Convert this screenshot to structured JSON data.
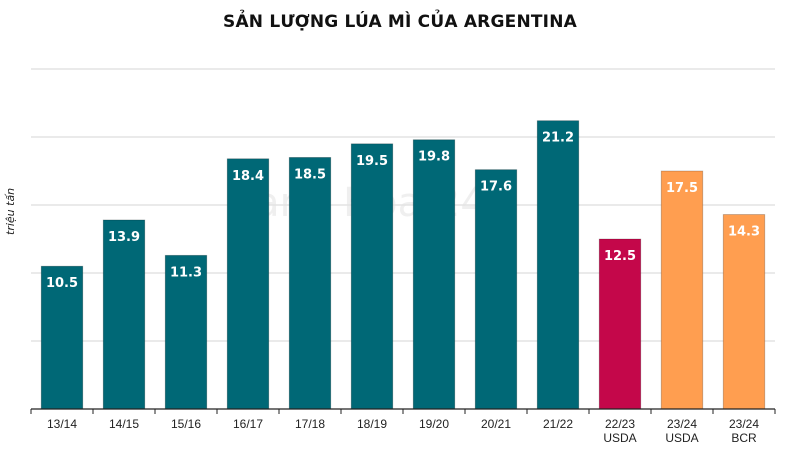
{
  "chart_data": {
    "type": "bar",
    "title": "SẢN LƯỢNG LÚA MÌ CỦA ARGENTINA",
    "xlabel": "",
    "ylabel": "triệu tấn",
    "ylim": [
      0,
      25
    ],
    "grid": true,
    "gridline_values": [
      5,
      10,
      15,
      20,
      25
    ],
    "categories": [
      [
        "13/14"
      ],
      [
        "14/15"
      ],
      [
        "15/16"
      ],
      [
        "16/17"
      ],
      [
        "17/18"
      ],
      [
        "18/19"
      ],
      [
        "19/20"
      ],
      [
        "20/21"
      ],
      [
        "21/22"
      ],
      [
        "22/23",
        "USDA"
      ],
      [
        "23/24",
        "USDA"
      ],
      [
        "23/24",
        "BCR"
      ]
    ],
    "values": [
      10.5,
      13.9,
      11.3,
      18.4,
      18.5,
      19.5,
      19.8,
      17.6,
      21.2,
      12.5,
      17.5,
      14.3
    ],
    "data_labels": [
      "10.5",
      "13.9",
      "11.3",
      "18.4",
      "18.5",
      "19.5",
      "19.8",
      "17.6",
      "21.2",
      "12.5",
      "17.5",
      "14.3"
    ],
    "bar_colors": [
      "#006876",
      "#006876",
      "#006876",
      "#006876",
      "#006876",
      "#006876",
      "#006876",
      "#006876",
      "#006876",
      "#c4074a",
      "#ff9e50",
      "#ff9e50"
    ]
  },
  "watermark": "Hàng Hóa 247"
}
